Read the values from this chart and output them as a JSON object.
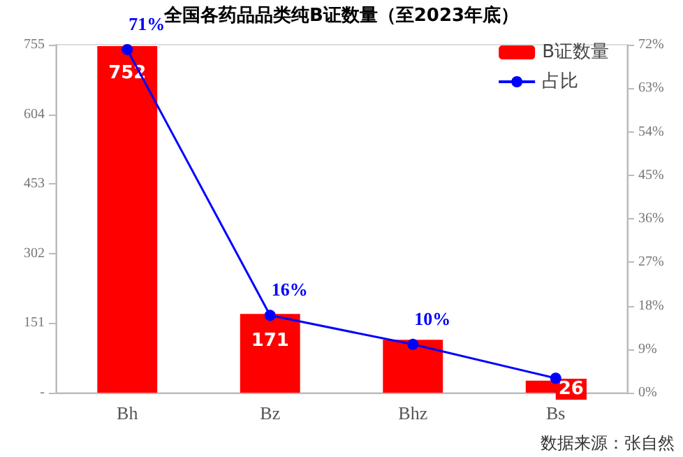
{
  "chart_data": {
    "type": "bar",
    "title": "全国各药品品类纯B证数量（至2023年底）",
    "categories": [
      "Bh",
      "Bz",
      "Bhz",
      "Bs"
    ],
    "series": [
      {
        "name": "B证数量",
        "color": "#ff0000",
        "values": [
          752,
          171,
          115,
          26
        ],
        "value_labels": [
          "752",
          "171",
          null,
          "26"
        ]
      },
      {
        "name": "占比",
        "type": "line",
        "axis": "y2",
        "color": "#0000ff",
        "marker": "circle",
        "values": [
          71,
          16,
          10,
          3
        ],
        "value_labels": [
          "71%",
          "16%",
          "10%",
          null
        ]
      }
    ],
    "ylim": [
      0,
      755
    ],
    "yticks": [
      {
        "value": 0,
        "label": "-"
      },
      151,
      302,
      453,
      604,
      755
    ],
    "y2lim": [
      0,
      72
    ],
    "y2ticks": [
      {
        "value": 0,
        "label": "0%"
      },
      {
        "value": 9,
        "label": "9%"
      },
      {
        "value": 18,
        "label": "18%"
      },
      {
        "value": 27,
        "label": "27%"
      },
      {
        "value": 36,
        "label": "36%"
      },
      {
        "value": 45,
        "label": "45%"
      },
      {
        "value": 54,
        "label": "54%"
      },
      {
        "value": 63,
        "label": "63%"
      },
      {
        "value": 72,
        "label": "72%"
      }
    ],
    "grid": false,
    "legend": "top right",
    "annotations": [
      "数据来源：张自然"
    ]
  }
}
